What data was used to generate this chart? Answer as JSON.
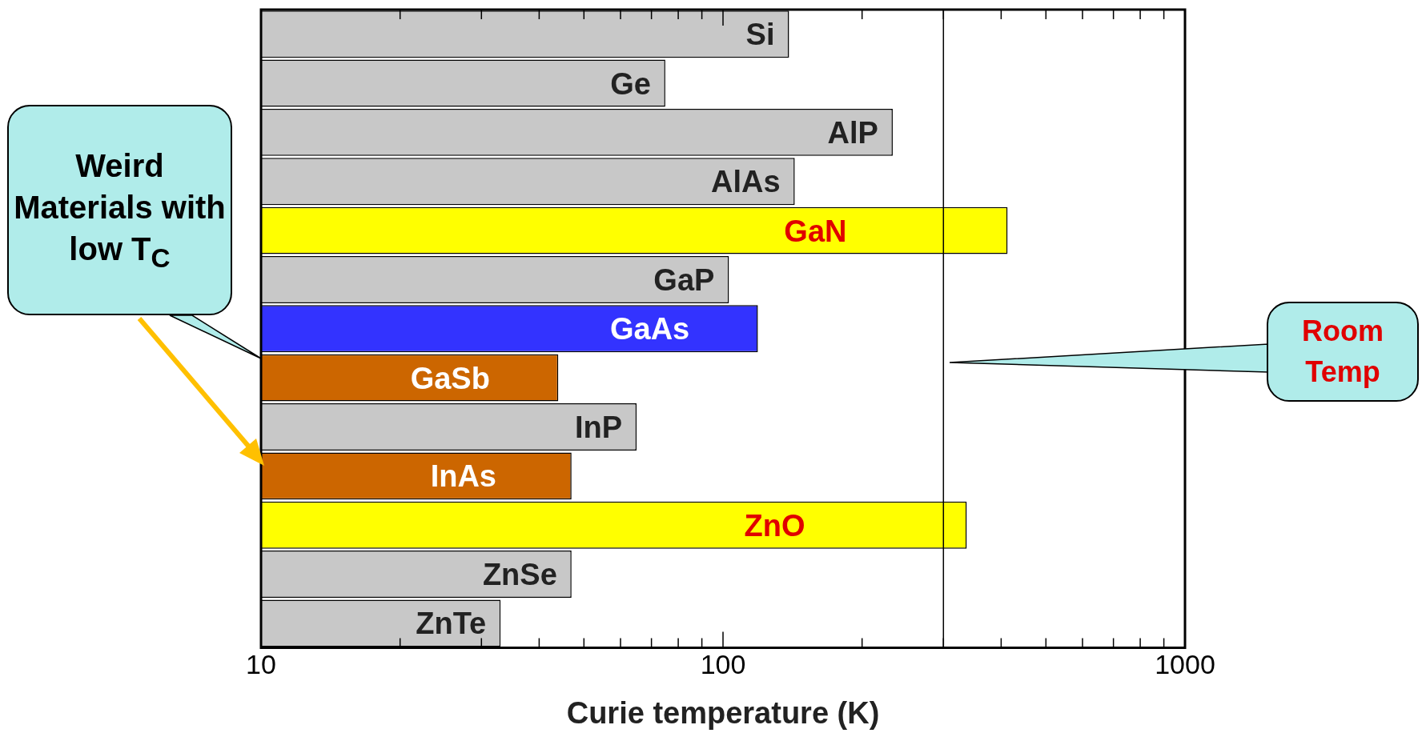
{
  "chart_data": {
    "type": "bar",
    "orientation": "horizontal",
    "xlabel": "Curie temperature (K)",
    "categories": [
      "Si",
      "Ge",
      "AlP",
      "AlAs",
      "GaN",
      "GaP",
      "GaAs",
      "GaSb",
      "InP",
      "InAs",
      "ZnO",
      "ZnSe",
      "ZnTe"
    ],
    "values": [
      139,
      75,
      233,
      143,
      413,
      103,
      119,
      44,
      65,
      47,
      337,
      47,
      33
    ],
    "colors": [
      "#c8c8c8",
      "#c8c8c8",
      "#c8c8c8",
      "#c8c8c8",
      "#ffff00",
      "#c8c8c8",
      "#3333ff",
      "#cc6600",
      "#c8c8c8",
      "#cc6600",
      "#ffff00",
      "#c8c8c8",
      "#c8c8c8"
    ],
    "log": "x",
    "xlim": [
      10,
      1000
    ],
    "xticks": [
      10,
      {
        "value": 20,
        "label": null
      },
      {
        "value": 30,
        "label": null
      },
      {
        "value": 40,
        "label": null
      },
      {
        "value": 50,
        "label": null
      },
      {
        "value": 60,
        "label": null
      },
      {
        "value": 70,
        "label": null
      },
      {
        "value": 80,
        "label": null
      },
      {
        "value": 90,
        "label": null
      },
      100,
      {
        "value": 200,
        "label": null
      },
      {
        "value": 300,
        "label": null
      },
      {
        "value": 400,
        "label": null
      },
      {
        "value": 500,
        "label": null
      },
      {
        "value": 600,
        "label": null
      },
      {
        "value": 700,
        "label": null
      },
      {
        "value": 800,
        "label": null
      },
      {
        "value": 900,
        "label": null
      },
      1000
    ],
    "ref_lines": [
      {
        "axis": "x",
        "value": 300,
        "label": "Room Temp",
        "color": "#000000"
      }
    ],
    "annotations": [
      "Weird Materials with low T$_{C}$"
    ],
    "tick_labels": "x",
    "grid": false,
    "legend": false
  }
}
